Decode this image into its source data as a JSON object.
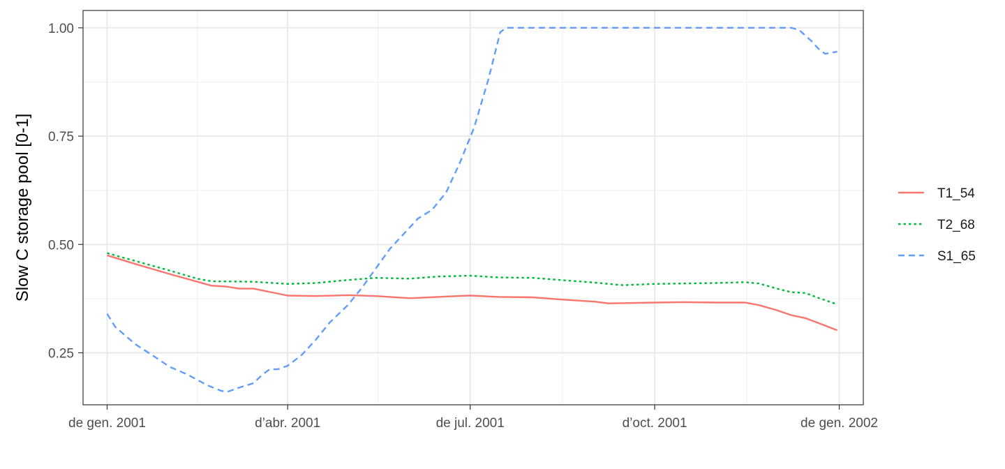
{
  "chart_data": {
    "type": "line",
    "title": "",
    "xlabel": "",
    "ylabel": "Slow C storage pool  [0-1]",
    "xlim": [
      "2000-12-20",
      "2002-01-13"
    ],
    "ylim": [
      0.13,
      1.04
    ],
    "x_ticks": [
      {
        "date": "2001-01-01",
        "label": "de gen. 2001"
      },
      {
        "date": "2001-04-01",
        "label": "d’abr. 2001"
      },
      {
        "date": "2001-07-01",
        "label": "de jul. 2001"
      },
      {
        "date": "2001-10-01",
        "label": "d’oct. 2001"
      },
      {
        "date": "2002-01-01",
        "label": "de gen. 2002"
      }
    ],
    "x_minor_ticks": [
      "2001-02-15",
      "2001-05-16",
      "2001-08-16",
      "2001-11-16"
    ],
    "y_ticks": [
      {
        "value": 0.25,
        "label": "0.25"
      },
      {
        "value": 0.5,
        "label": "0.50"
      },
      {
        "value": 0.75,
        "label": "0.75"
      },
      {
        "value": 1.0,
        "label": "1.00"
      }
    ],
    "y_minor_ticks": [
      0.375,
      0.625,
      0.875
    ],
    "grid": true,
    "legend_position": "right",
    "series": [
      {
        "name": "T1_54",
        "color": "#F8766D",
        "dash": "solid",
        "points": [
          [
            "2001-01-01",
            0.475
          ],
          [
            "2001-01-15",
            0.455
          ],
          [
            "2001-02-01",
            0.432
          ],
          [
            "2001-02-15",
            0.414
          ],
          [
            "2001-02-22",
            0.405
          ],
          [
            "2001-03-01",
            0.403
          ],
          [
            "2001-03-08",
            0.398
          ],
          [
            "2001-03-15",
            0.398
          ],
          [
            "2001-04-01",
            0.382
          ],
          [
            "2001-04-15",
            0.381
          ],
          [
            "2001-05-01",
            0.383
          ],
          [
            "2001-05-15",
            0.381
          ],
          [
            "2001-06-01",
            0.376
          ],
          [
            "2001-06-15",
            0.379
          ],
          [
            "2001-07-01",
            0.382
          ],
          [
            "2001-07-15",
            0.379
          ],
          [
            "2001-08-01",
            0.378
          ],
          [
            "2001-08-15",
            0.373
          ],
          [
            "2001-09-01",
            0.368
          ],
          [
            "2001-09-08",
            0.364
          ],
          [
            "2001-10-01",
            0.366
          ],
          [
            "2001-10-15",
            0.367
          ],
          [
            "2001-11-01",
            0.366
          ],
          [
            "2001-11-15",
            0.366
          ],
          [
            "2001-11-22",
            0.36
          ],
          [
            "2001-12-01",
            0.348
          ],
          [
            "2001-12-08",
            0.337
          ],
          [
            "2001-12-15",
            0.33
          ],
          [
            "2001-12-22",
            0.318
          ],
          [
            "2001-12-31",
            0.302
          ]
        ]
      },
      {
        "name": "T2_68",
        "color": "#00BA38",
        "dash": "dotted",
        "points": [
          [
            "2001-01-01",
            0.48
          ],
          [
            "2001-01-15",
            0.462
          ],
          [
            "2001-02-01",
            0.44
          ],
          [
            "2001-02-15",
            0.421
          ],
          [
            "2001-02-22",
            0.415
          ],
          [
            "2001-03-15",
            0.414
          ],
          [
            "2001-04-01",
            0.409
          ],
          [
            "2001-04-15",
            0.411
          ],
          [
            "2001-05-01",
            0.418
          ],
          [
            "2001-05-15",
            0.423
          ],
          [
            "2001-06-01",
            0.421
          ],
          [
            "2001-06-15",
            0.426
          ],
          [
            "2001-07-01",
            0.428
          ],
          [
            "2001-07-15",
            0.424
          ],
          [
            "2001-08-01",
            0.423
          ],
          [
            "2001-08-15",
            0.418
          ],
          [
            "2001-09-01",
            0.412
          ],
          [
            "2001-09-15",
            0.406
          ],
          [
            "2001-10-01",
            0.409
          ],
          [
            "2001-10-15",
            0.41
          ],
          [
            "2001-11-01",
            0.411
          ],
          [
            "2001-11-15",
            0.413
          ],
          [
            "2001-11-22",
            0.41
          ],
          [
            "2001-12-01",
            0.398
          ],
          [
            "2001-12-08",
            0.39
          ],
          [
            "2001-12-15",
            0.388
          ],
          [
            "2001-12-22",
            0.376
          ],
          [
            "2001-12-31",
            0.362
          ]
        ]
      },
      {
        "name": "S1_65",
        "color": "#619CFF",
        "dash": "dashed",
        "points": [
          [
            "2001-01-01",
            0.34
          ],
          [
            "2001-01-05",
            0.31
          ],
          [
            "2001-01-15",
            0.27
          ],
          [
            "2001-01-25",
            0.24
          ],
          [
            "2001-02-01",
            0.218
          ],
          [
            "2001-02-10",
            0.2
          ],
          [
            "2001-02-20",
            0.175
          ],
          [
            "2001-02-27",
            0.162
          ],
          [
            "2001-03-02",
            0.16
          ],
          [
            "2001-03-08",
            0.17
          ],
          [
            "2001-03-15",
            0.18
          ],
          [
            "2001-03-19",
            0.198
          ],
          [
            "2001-03-23",
            0.212
          ],
          [
            "2001-03-27",
            0.212
          ],
          [
            "2001-04-01",
            0.22
          ],
          [
            "2001-04-08",
            0.245
          ],
          [
            "2001-04-15",
            0.28
          ],
          [
            "2001-04-22",
            0.32
          ],
          [
            "2001-05-01",
            0.36
          ],
          [
            "2001-05-08",
            0.4
          ],
          [
            "2001-05-15",
            0.445
          ],
          [
            "2001-05-22",
            0.49
          ],
          [
            "2001-05-29",
            0.525
          ],
          [
            "2001-06-05",
            0.56
          ],
          [
            "2001-06-12",
            0.58
          ],
          [
            "2001-06-19",
            0.62
          ],
          [
            "2001-06-26",
            0.69
          ],
          [
            "2001-07-03",
            0.77
          ],
          [
            "2001-07-10",
            0.88
          ],
          [
            "2001-07-16",
            0.99
          ],
          [
            "2001-07-19",
            1.0
          ],
          [
            "2001-12-08",
            1.0
          ],
          [
            "2001-12-12",
            0.995
          ],
          [
            "2001-12-18",
            0.97
          ],
          [
            "2001-12-22",
            0.95
          ],
          [
            "2001-12-25",
            0.94
          ],
          [
            "2001-12-31",
            0.945
          ]
        ]
      }
    ]
  }
}
